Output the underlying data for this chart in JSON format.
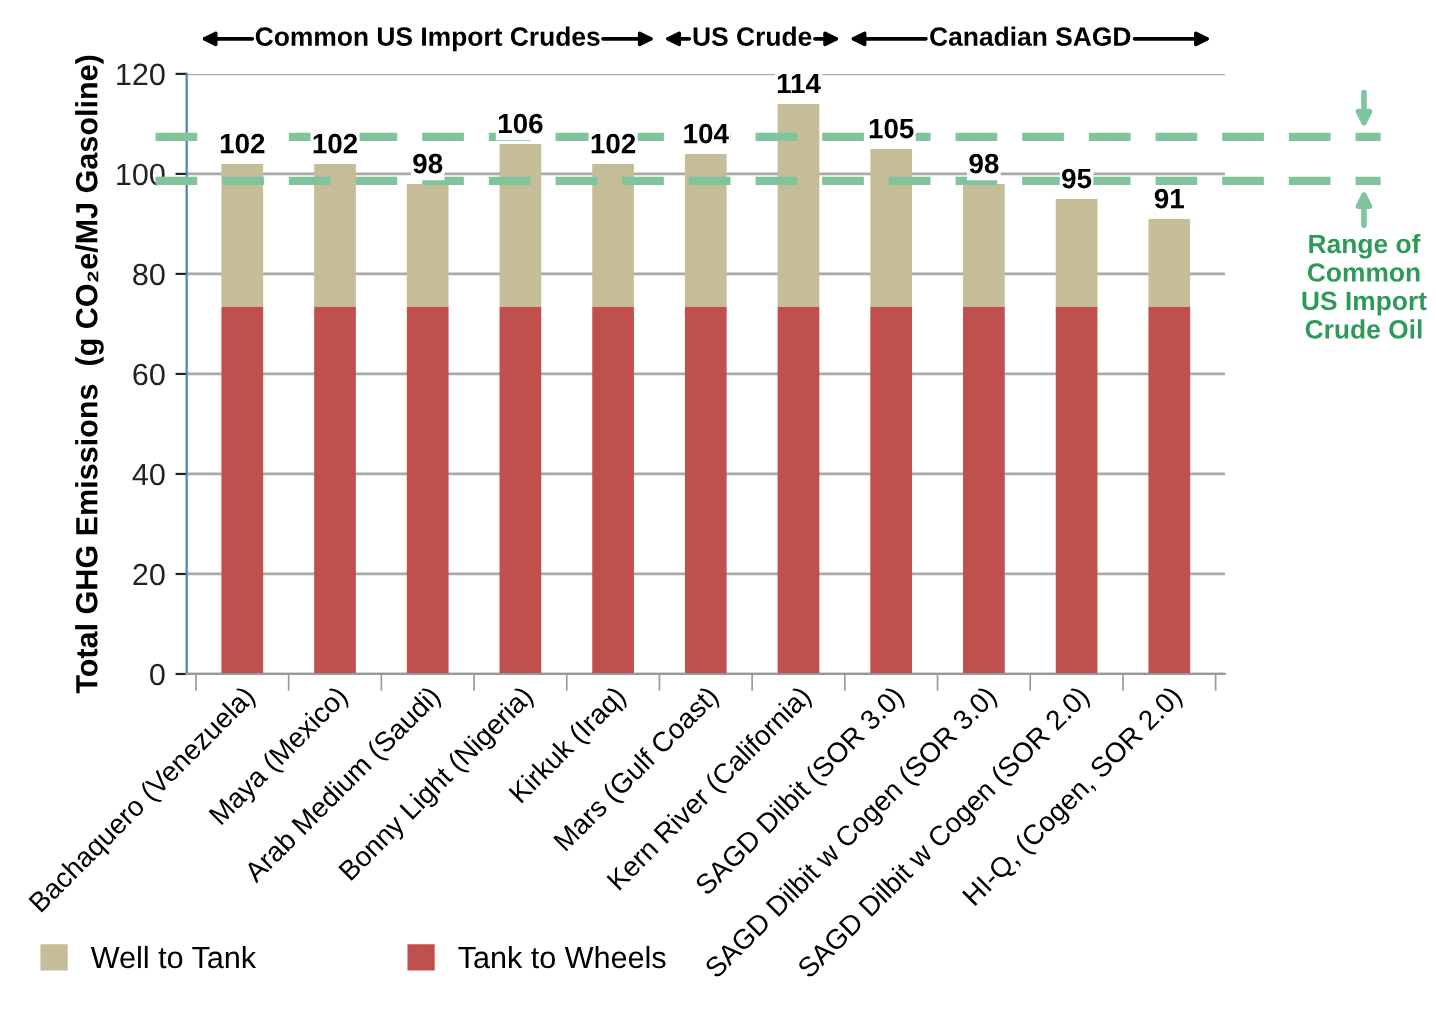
{
  "chart_data": {
    "type": "bar",
    "stacked": true,
    "ylabel": "Total GHG Emissions  (g CO₂e/MJ Gasoline)",
    "categories": [
      "Bachaquero (Venezuela)",
      "Maya (Mexico)",
      "Arab Medium (Saudi)",
      "Bonny Light (Nigeria)",
      "Kirkuk (Iraq)",
      "Mars (Gulf Coast)",
      "Kern River (California)",
      "SAGD Dilbit (SOR 3.0)",
      "SAGD Dilbit w Cogen (SOR 3.0)",
      "SAGD Dilbit w Cogen (SOR 2.0)",
      "HI-Q, (Cogen, SOR 2.0)"
    ],
    "series": [
      {
        "name": "Tank to Wheels",
        "color": "#c0504d",
        "values": [
          73.5,
          73.5,
          73.5,
          73.5,
          73.5,
          73.5,
          73.5,
          73.5,
          73.5,
          73.5,
          73.5
        ]
      },
      {
        "name": "Well to Tank",
        "color": "#c4bd97",
        "values": [
          28.5,
          28.5,
          24.5,
          32.5,
          28.5,
          30.5,
          40.5,
          31.5,
          24.5,
          21.5,
          17.5
        ]
      }
    ],
    "totals": [
      "102",
      "102",
      "98",
      "106",
      "102",
      "104",
      "114",
      "105",
      "98",
      "95",
      "91"
    ],
    "ylim": [
      0,
      120
    ],
    "yticks": [
      0,
      20,
      40,
      60,
      80,
      100,
      120
    ],
    "grid": "y",
    "legend": "bottom left",
    "ref_lines": [
      {
        "axis": "y",
        "value": 107.4,
        "label": null,
        "color": "#7fc49d",
        "line_style": "dashed"
      },
      {
        "axis": "y",
        "value": 98.6,
        "label": null,
        "color": "#7fc49d",
        "line_style": "dashed"
      }
    ],
    "annotations": [
      "Common US Import Crudes",
      "US Crude",
      "Canadian SAGD",
      "Range of Common US Import Crude Oil"
    ]
  }
}
